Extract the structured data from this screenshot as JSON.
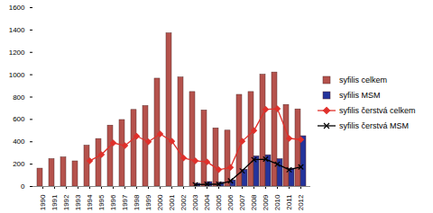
{
  "chart_data": {
    "type": "bar",
    "categories": [
      "1990",
      "1991",
      "1992",
      "1993",
      "1994",
      "1995",
      "1996",
      "1997",
      "1998",
      "1999",
      "2000",
      "2001",
      "2002",
      "2003",
      "2004",
      "2005",
      "2006",
      "2007",
      "2008",
      "2009",
      "2010",
      "2011",
      "2012"
    ],
    "series": [
      {
        "name": "syfilis celkem",
        "type": "bar",
        "color": "#b5524c",
        "values": [
          160,
          245,
          260,
          225,
          365,
          425,
          545,
          595,
          685,
          720,
          965,
          1370,
          975,
          845,
          680,
          520,
          500,
          820,
          845,
          1000,
          1020,
          730,
          690
        ]
      },
      {
        "name": "syfilis MSM",
        "type": "bar",
        "color": "#24349c",
        "values": [
          null,
          null,
          null,
          null,
          null,
          null,
          null,
          null,
          null,
          null,
          null,
          null,
          null,
          25,
          40,
          35,
          55,
          150,
          270,
          280,
          245,
          160,
          450
        ]
      },
      {
        "name": "syfilis čerstvá celkem",
        "type": "line",
        "color": "#e0302b",
        "marker": "diamond",
        "values": [
          null,
          null,
          null,
          null,
          230,
          285,
          390,
          365,
          450,
          400,
          470,
          405,
          255,
          230,
          220,
          150,
          170,
          405,
          500,
          690,
          695,
          430,
          420
        ]
      },
      {
        "name": "syfilis čerstvá MSM",
        "type": "line",
        "color": "#000000",
        "marker": "x",
        "values": [
          null,
          null,
          null,
          null,
          null,
          null,
          null,
          null,
          null,
          null,
          null,
          null,
          null,
          15,
          20,
          20,
          50,
          140,
          240,
          245,
          200,
          150,
          175
        ]
      }
    ],
    "ylim": [
      0,
      1600
    ],
    "yticks": [
      0,
      200,
      400,
      600,
      800,
      1000,
      1200,
      1400,
      1600
    ],
    "grid": false,
    "legend": "right"
  }
}
